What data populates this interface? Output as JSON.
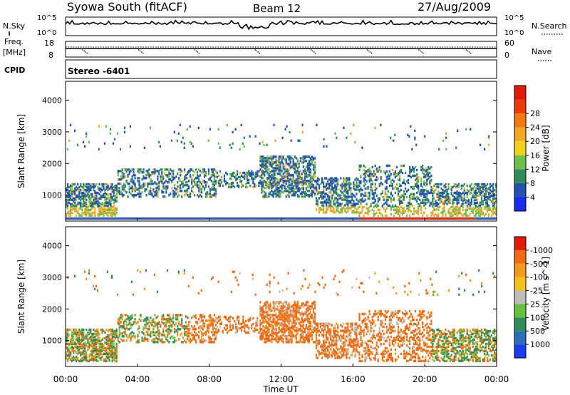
{
  "header": {
    "station": "Syowa South (fitACF)",
    "beam": "Beam 12",
    "date": "27/Aug/2009"
  },
  "panels": {
    "nsky_label": "N.Sky",
    "nsearch_label": "N.Search",
    "freq_label": "Freq.",
    "freq_unit": "[MHz]",
    "nave_label": "Nave",
    "cpid_label": "CPID",
    "cpid_value": "Stereo -6401",
    "noise_ticks": [
      "10^5",
      "10^0"
    ],
    "freq_ticks": [
      "18",
      "8"
    ],
    "nave_ticks": [
      "60",
      "0"
    ]
  },
  "chart_data": [
    {
      "type": "heatmap",
      "name": "power",
      "ylabel": "Slant Range [km]",
      "xlabel": "",
      "ylim": [
        180,
        4600
      ],
      "yticks": [
        1000,
        2000,
        3000,
        4000
      ],
      "xticks": [
        "00:00",
        "04:00",
        "08:00",
        "12:00",
        "16:00",
        "20:00",
        "00:00"
      ],
      "colorbar": {
        "label": "Power [dB]",
        "ticks": [
          "4",
          "8",
          "12",
          "16",
          "20",
          "24",
          "28"
        ],
        "colors": [
          "#1a2cf0",
          "#2352b0",
          "#2e8b57",
          "#6cc04a",
          "#f2d11a",
          "#f5a623",
          "#f07a10",
          "#ec3a0c",
          "#e31a0a"
        ]
      }
    },
    {
      "type": "heatmap",
      "name": "velocity",
      "ylabel": "Slant Range [km]",
      "xlabel": "Time UT",
      "ylim": [
        180,
        4600
      ],
      "yticks": [
        1000,
        2000,
        3000,
        4000
      ],
      "xticks": [
        "00:00",
        "04:00",
        "08:00",
        "12:00",
        "16:00",
        "20:00",
        "00:00"
      ],
      "colorbar": {
        "label": "Velocity [m s^-1]",
        "ticks": [
          "1000",
          "500",
          "100",
          "25",
          "-25",
          "-100",
          "-500",
          "-1000"
        ],
        "colors": [
          "#1a3cf0",
          "#2a70b8",
          "#2e8b57",
          "#66c23a",
          "#bcbcbc",
          "#f2c21a",
          "#f29a1a",
          "#ef6a12",
          "#e31a0a"
        ]
      }
    }
  ]
}
